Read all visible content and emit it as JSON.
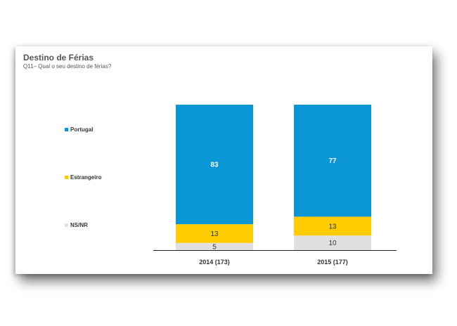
{
  "colors": {
    "portugal": "#0a96d4",
    "estrangeiro": "#ffcc00",
    "nsnr": "#e0e0e0",
    "text_light": "#ffffff",
    "text_dark": "#333333"
  },
  "chart_data": {
    "type": "bar",
    "stacked": true,
    "title": "Destino de Férias",
    "subtitle": "Q11– Qual o seu destino de férias?",
    "categories": [
      "2014 (173)",
      "2015 (177)"
    ],
    "series": [
      {
        "name": "Portugal",
        "values": [
          83,
          77
        ]
      },
      {
        "name": "Estrangeiro",
        "values": [
          13,
          13
        ]
      },
      {
        "name": "NS/NR",
        "values": [
          5,
          10
        ]
      }
    ],
    "ylim": [
      0,
      100
    ],
    "grid": false,
    "legend_position": "left"
  }
}
